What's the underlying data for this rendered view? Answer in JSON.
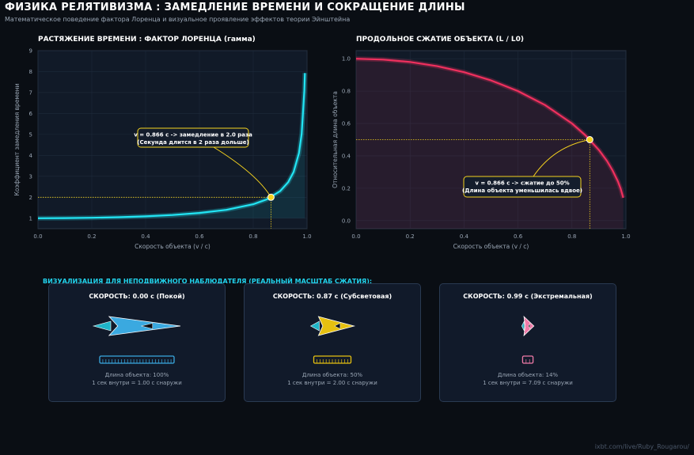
{
  "header": {
    "title": "ФИЗИКА РЕЛЯТИВИЗМА : ЗАМЕДЛЕНИЕ ВРЕМЕНИ И СОКРАЩЕНИЕ ДЛИНЫ",
    "subtitle": "Математическое поведение фактора Лоренца и визуальное проявление эффектов теории Эйнштейна"
  },
  "colors": {
    "cyan": "#22e6f5",
    "red": "#f0305e",
    "yellow": "#f5d21e",
    "card_bg": "#111a2a"
  },
  "chart_data": [
    {
      "type": "line",
      "title": "РАСТЯЖЕНИЕ ВРЕМЕНИ : ФАКТОР ЛОРЕНЦА (гамма)",
      "xlabel": "Скорость объекта (v / c)",
      "ylabel": "Коэффициент замедления времени",
      "xlim": [
        0,
        1
      ],
      "ylim": [
        0.5,
        9
      ],
      "xticks": [
        "0.0",
        "0.2",
        "0.4",
        "0.6",
        "0.8",
        "1.0"
      ],
      "yticks": [
        "1",
        "2",
        "3",
        "4",
        "5",
        "6",
        "7",
        "8",
        "9"
      ],
      "series": [
        {
          "x": [
            0,
            0.1,
            0.2,
            0.3,
            0.4,
            0.5,
            0.6,
            0.7,
            0.8,
            0.85,
            0.9,
            0.93,
            0.95,
            0.97,
            0.98,
            0.99,
            0.992
          ],
          "values": [
            1.0,
            1.005,
            1.021,
            1.048,
            1.091,
            1.155,
            1.25,
            1.4,
            1.667,
            1.898,
            2.294,
            2.72,
            3.203,
            4.113,
            5.025,
            7.089,
            7.93
          ]
        }
      ],
      "marker": {
        "x": 0.866,
        "y": 2.0
      },
      "annotation": [
        "v = 0.866 c -> замедление в 2.0 раза",
        "(Секунда длится в 2 раза дольше)"
      ],
      "grid": true
    },
    {
      "type": "line",
      "title": "ПРОДОЛЬНОЕ СЖАТИЕ ОБЪЕКТА (L / L0)",
      "xlabel": "Скорость объекта (v / c)",
      "ylabel": "Относительная длина объекта",
      "xlim": [
        0,
        1
      ],
      "ylim": [
        -0.05,
        1.05
      ],
      "xticks": [
        "0.0",
        "0.2",
        "0.4",
        "0.6",
        "0.8",
        "1.0"
      ],
      "yticks": [
        "0.0",
        "0.2",
        "0.4",
        "0.6",
        "0.8",
        "1.0"
      ],
      "series": [
        {
          "x": [
            0,
            0.1,
            0.2,
            0.3,
            0.4,
            0.5,
            0.6,
            0.7,
            0.8,
            0.85,
            0.9,
            0.93,
            0.95,
            0.97,
            0.98,
            0.99
          ],
          "values": [
            1.0,
            0.995,
            0.98,
            0.954,
            0.917,
            0.866,
            0.8,
            0.714,
            0.6,
            0.527,
            0.436,
            0.368,
            0.312,
            0.243,
            0.199,
            0.141
          ]
        }
      ],
      "marker": {
        "x": 0.866,
        "y": 0.5
      },
      "annotation": [
        "v = 0.866 c -> сжатие до 50%",
        "(Длина объекта уменьшилась вдвое)"
      ],
      "grid": true
    }
  ],
  "visualization": {
    "title": "ВИЗУАЛИЗАЦИЯ ДЛЯ НЕПОДВИЖНОГО НАБЛЮДАТЕЛЯ (РЕАЛЬНЫЙ МАСШТАБ СЖАТИЯ):",
    "cards": [
      {
        "title": "СКОРОСТЬ: 0.00 c (Покой)",
        "length_fraction": 1.0,
        "color": "#3aa9e0",
        "line1": "Длина объекта: 100%",
        "line2": "1 сек внутри = 1.00 с снаружи"
      },
      {
        "title": "СКОРОСТЬ: 0.87 c (Субсветовая)",
        "length_fraction": 0.5,
        "color": "#e6c010",
        "line1": "Длина объекта: 50%",
        "line2": "1 сек внутри = 2.00 с снаружи"
      },
      {
        "title": "СКОРОСТЬ: 0.99 c (Экстремальная)",
        "length_fraction": 0.14,
        "color": "#f07aa8",
        "line1": "Длина объекта: 14%",
        "line2": "1 сек внутри = 7.09 с снаружи"
      }
    ]
  },
  "watermark": "ixbt.com/live/Ruby_Rougarou/"
}
